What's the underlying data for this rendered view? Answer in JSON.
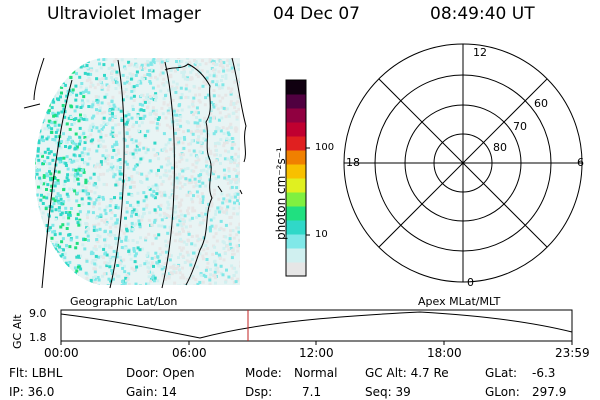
{
  "header": {
    "instrument": "Ultraviolet Imager",
    "date": "04 Dec 07",
    "time": "08:49:40 UT"
  },
  "colorbar": {
    "unit_label": "photon cm⁻²s⁻¹",
    "ticks": [
      "10",
      "100"
    ],
    "colors": [
      "#e6e6e6",
      "#d0f0f0",
      "#80e8e8",
      "#30d8c8",
      "#20e080",
      "#80f040",
      "#e0f020",
      "#f8c000",
      "#f08000",
      "#e02020",
      "#c00030",
      "#900040",
      "#500040",
      "#100010"
    ]
  },
  "polar_plot": {
    "mlt_labels": {
      "top": "12",
      "left": "18",
      "right": "6",
      "bottom": "0"
    },
    "lat_labels": [
      "60",
      "70",
      "80"
    ]
  },
  "timeline": {
    "left_label": "Geographic Lat/Lon",
    "right_label": "Apex MLat/MLT",
    "axis_title": "GC Alt",
    "y_ticks": [
      "9.0",
      "1.8"
    ],
    "x_ticks": [
      "00:00",
      "06:00",
      "12:00",
      "18:00",
      "23:59"
    ],
    "current_time": "08:49:40",
    "marker_color": "#c02020"
  },
  "status": {
    "filter": "Flt: LBHL",
    "door": "Door: Open",
    "mode_label": "Mode:",
    "mode_value": "Normal",
    "gc_alt": "GC Alt: 4.7 Re",
    "glat_label": "GLat:",
    "glat_value": "-6.3",
    "ip": "IP: 36.0",
    "gain": "Gain: 14",
    "dsp_label": "Dsp:",
    "dsp_value": "7.1",
    "seq": "Seq: 39",
    "glon_label": "GLon:",
    "glon_value": "297.9"
  }
}
